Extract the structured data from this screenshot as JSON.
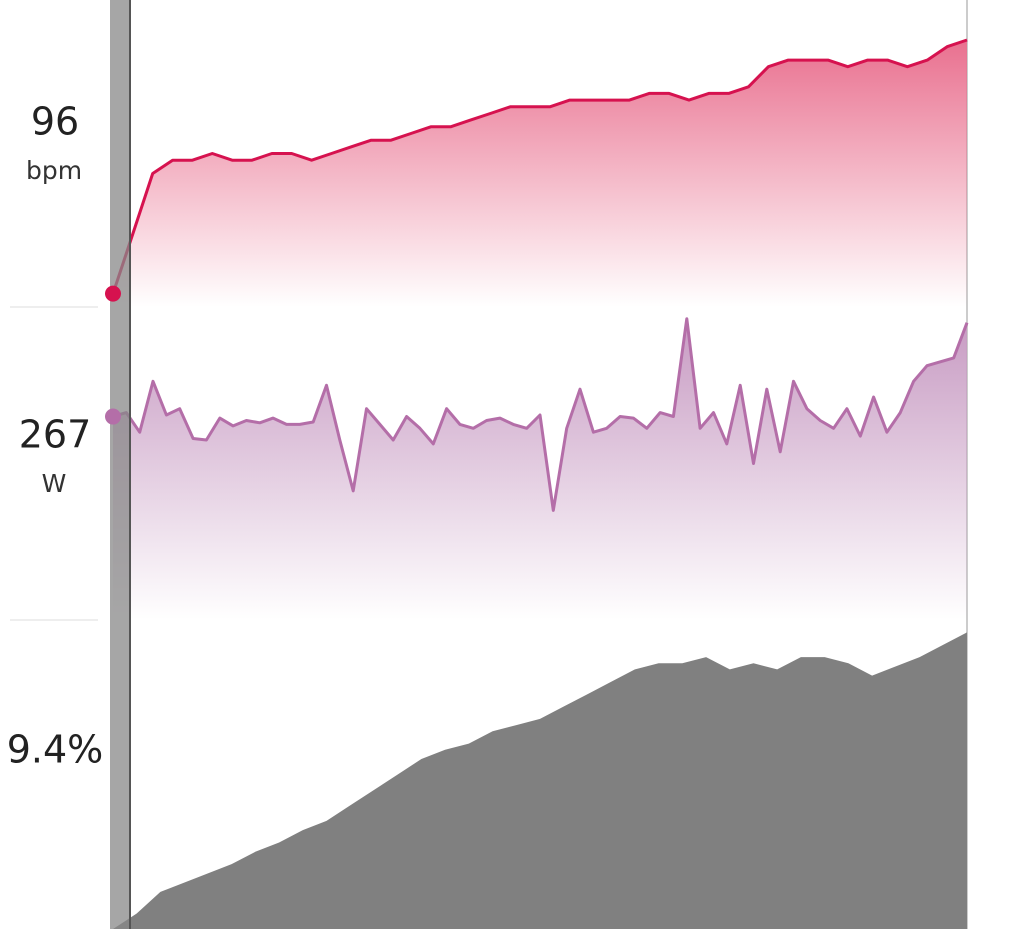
{
  "chart_data": [
    {
      "type": "area",
      "readout": 96,
      "unit": "bpm",
      "color": "#d6124f",
      "fill": "#e9708f",
      "ylim": [
        94,
        140
      ],
      "values": [
        96,
        105,
        114,
        116,
        116,
        117,
        116,
        116,
        117,
        117,
        116,
        117,
        118,
        119,
        119,
        120,
        121,
        121,
        122,
        123,
        124,
        124,
        124,
        125,
        125,
        125,
        125,
        126,
        126,
        125,
        126,
        126,
        127,
        130,
        131,
        131,
        131,
        130,
        131,
        131,
        130,
        131,
        133,
        134
      ]
    },
    {
      "type": "area",
      "readout": 267,
      "unit": "W",
      "color": "#b46ea8",
      "fill": "#c79ac2",
      "ylim": [
        0,
        400
      ],
      "values": [
        260,
        265,
        240,
        305,
        262,
        270,
        232,
        230,
        258,
        248,
        255,
        252,
        258,
        250,
        250,
        253,
        300,
        230,
        165,
        270,
        250,
        230,
        260,
        245,
        225,
        270,
        250,
        245,
        255,
        258,
        250,
        245,
        262,
        140,
        245,
        295,
        240,
        245,
        260,
        258,
        245,
        265,
        260,
        385,
        245,
        265,
        225,
        300,
        200,
        295,
        215,
        305,
        270,
        255,
        245,
        270,
        235,
        285,
        240,
        265,
        305,
        325,
        330,
        335,
        380
      ]
    },
    {
      "type": "solid-area",
      "readout": {
        "value": 9.4,
        "label": "9.4%"
      },
      "color": "#808080",
      "ylim": [
        0,
        100
      ],
      "values": [
        0,
        5,
        12,
        15,
        18,
        21,
        25,
        28,
        32,
        35,
        40,
        45,
        50,
        55,
        58,
        60,
        64,
        66,
        68,
        72,
        76,
        80,
        84,
        86,
        86,
        88,
        84,
        86,
        84,
        88,
        88,
        86,
        82,
        85,
        88,
        92,
        96
      ]
    }
  ]
}
